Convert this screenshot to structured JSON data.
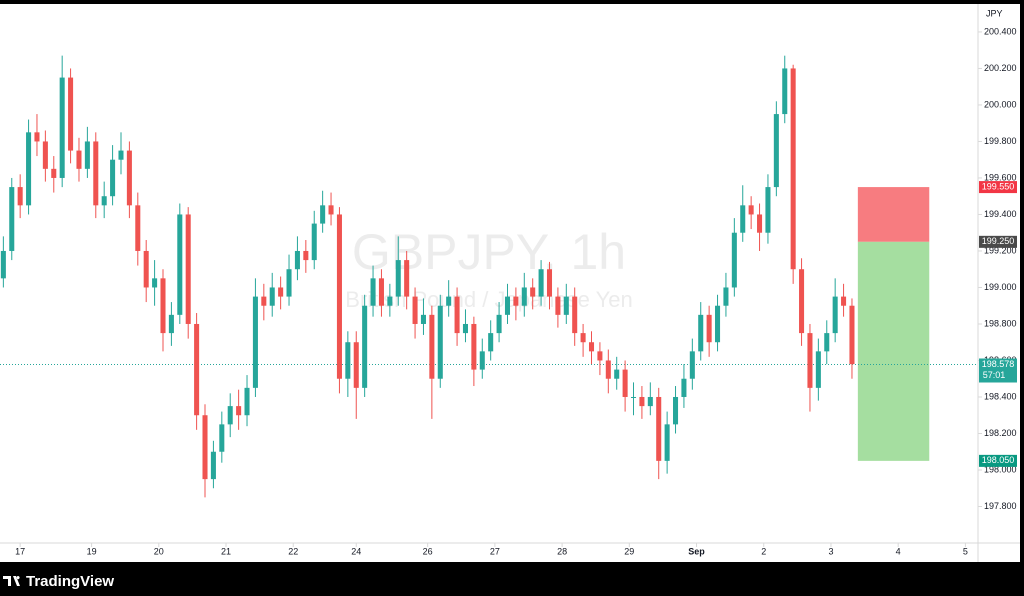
{
  "chart_data": {
    "type": "candlestick",
    "title": "GBPJPY, 1h",
    "subtitle": "British Pound / Japanese Yen",
    "currency": "JPY",
    "brand": "TradingView",
    "up_color": "#26a69a",
    "down_color": "#ef5350",
    "candles": [
      [
        199.05,
        199.28,
        199.0,
        199.2
      ],
      [
        199.2,
        199.6,
        199.15,
        199.55
      ],
      [
        199.55,
        199.62,
        199.38,
        199.45
      ],
      [
        199.45,
        199.92,
        199.4,
        199.85
      ],
      [
        199.85,
        199.95,
        199.72,
        199.8
      ],
      [
        199.8,
        199.86,
        199.58,
        199.65
      ],
      [
        199.65,
        199.72,
        199.52,
        199.6
      ],
      [
        199.6,
        200.27,
        199.55,
        200.15
      ],
      [
        200.15,
        200.2,
        199.68,
        199.75
      ],
      [
        199.75,
        199.82,
        199.58,
        199.65
      ],
      [
        199.65,
        199.88,
        199.6,
        199.8
      ],
      [
        199.8,
        199.85,
        199.38,
        199.45
      ],
      [
        199.45,
        199.58,
        199.38,
        199.5
      ],
      [
        199.5,
        199.78,
        199.45,
        199.7
      ],
      [
        199.7,
        199.85,
        199.62,
        199.75
      ],
      [
        199.75,
        199.8,
        199.38,
        199.45
      ],
      [
        199.45,
        199.52,
        199.12,
        199.2
      ],
      [
        199.2,
        199.26,
        198.92,
        199.0
      ],
      [
        199.0,
        199.15,
        198.9,
        199.05
      ],
      [
        199.05,
        199.1,
        198.65,
        198.75
      ],
      [
        198.75,
        198.92,
        198.68,
        198.85
      ],
      [
        198.85,
        199.46,
        198.8,
        199.4
      ],
      [
        199.4,
        199.44,
        198.72,
        198.8
      ],
      [
        198.8,
        198.86,
        198.22,
        198.3
      ],
      [
        198.3,
        198.36,
        197.85,
        197.95
      ],
      [
        197.95,
        198.16,
        197.9,
        198.1
      ],
      [
        198.1,
        198.32,
        198.04,
        198.25
      ],
      [
        198.25,
        198.42,
        198.18,
        198.35
      ],
      [
        198.35,
        198.44,
        198.22,
        198.3
      ],
      [
        198.3,
        198.52,
        198.24,
        198.45
      ],
      [
        198.45,
        199.05,
        198.4,
        198.95
      ],
      [
        198.95,
        199.02,
        198.82,
        198.9
      ],
      [
        198.9,
        199.08,
        198.84,
        199.0
      ],
      [
        199.0,
        199.06,
        198.88,
        198.95
      ],
      [
        198.95,
        199.18,
        198.9,
        199.1
      ],
      [
        199.1,
        199.28,
        199.04,
        199.2
      ],
      [
        199.2,
        199.26,
        199.08,
        199.15
      ],
      [
        199.15,
        199.42,
        199.1,
        199.35
      ],
      [
        199.35,
        199.53,
        199.3,
        199.45
      ],
      [
        199.45,
        199.52,
        199.34,
        199.4
      ],
      [
        199.4,
        199.44,
        198.42,
        198.5
      ],
      [
        198.5,
        198.76,
        198.4,
        198.7
      ],
      [
        198.7,
        198.76,
        198.28,
        198.45
      ],
      [
        198.45,
        198.96,
        198.4,
        198.9
      ],
      [
        198.9,
        199.12,
        198.84,
        199.05
      ],
      [
        199.05,
        199.1,
        198.84,
        198.9
      ],
      [
        198.9,
        199.02,
        198.84,
        198.95
      ],
      [
        198.95,
        199.28,
        198.9,
        199.15
      ],
      [
        199.15,
        199.2,
        198.88,
        198.95
      ],
      [
        198.95,
        199.0,
        198.72,
        198.8
      ],
      [
        198.8,
        198.94,
        198.74,
        198.85
      ],
      [
        198.85,
        198.9,
        198.28,
        198.5
      ],
      [
        198.5,
        198.96,
        198.45,
        198.9
      ],
      [
        198.9,
        199.04,
        198.84,
        198.95
      ],
      [
        198.95,
        199.0,
        198.68,
        198.75
      ],
      [
        198.75,
        198.88,
        198.7,
        198.8
      ],
      [
        198.8,
        198.84,
        198.46,
        198.55
      ],
      [
        198.55,
        198.72,
        198.5,
        198.65
      ],
      [
        198.65,
        198.82,
        198.6,
        198.75
      ],
      [
        198.75,
        198.92,
        198.7,
        198.85
      ],
      [
        198.85,
        199.02,
        198.8,
        198.95
      ],
      [
        198.95,
        199.0,
        198.82,
        198.9
      ],
      [
        198.9,
        199.08,
        198.84,
        199.0
      ],
      [
        199.0,
        199.05,
        198.88,
        198.95
      ],
      [
        198.95,
        199.15,
        198.9,
        199.1
      ],
      [
        199.1,
        199.14,
        198.88,
        198.95
      ],
      [
        198.95,
        199.0,
        198.78,
        198.85
      ],
      [
        198.85,
        199.02,
        198.8,
        198.95
      ],
      [
        198.95,
        199.0,
        198.68,
        198.75
      ],
      [
        198.75,
        198.8,
        198.62,
        198.7
      ],
      [
        198.7,
        198.76,
        198.58,
        198.65
      ],
      [
        198.65,
        198.7,
        198.52,
        198.6
      ],
      [
        198.6,
        198.66,
        198.42,
        198.5
      ],
      [
        198.5,
        198.62,
        198.44,
        198.55
      ],
      [
        198.55,
        198.6,
        198.32,
        198.4
      ],
      [
        198.4,
        198.48,
        198.3,
        198.4
      ],
      [
        198.4,
        198.46,
        198.28,
        198.35
      ],
      [
        198.35,
        198.48,
        198.3,
        198.4
      ],
      [
        198.4,
        198.45,
        197.95,
        198.05
      ],
      [
        198.05,
        198.32,
        197.98,
        198.25
      ],
      [
        198.25,
        198.46,
        198.2,
        198.4
      ],
      [
        198.4,
        198.58,
        198.34,
        198.5
      ],
      [
        198.5,
        198.72,
        198.44,
        198.65
      ],
      [
        198.65,
        198.92,
        198.6,
        198.85
      ],
      [
        198.85,
        198.9,
        198.62,
        198.7
      ],
      [
        198.7,
        198.96,
        198.65,
        198.9
      ],
      [
        198.9,
        199.08,
        198.84,
        199.0
      ],
      [
        199.0,
        199.38,
        198.95,
        199.3
      ],
      [
        199.3,
        199.56,
        199.25,
        199.45
      ],
      [
        199.45,
        199.5,
        199.32,
        199.4
      ],
      [
        199.4,
        199.46,
        199.2,
        199.3
      ],
      [
        199.3,
        199.62,
        199.24,
        199.55
      ],
      [
        199.55,
        200.02,
        199.5,
        199.95
      ],
      [
        199.95,
        200.27,
        199.9,
        200.2
      ],
      [
        200.2,
        200.22,
        199.02,
        199.1
      ],
      [
        199.1,
        199.16,
        198.68,
        198.75
      ],
      [
        198.75,
        198.8,
        198.32,
        198.45
      ],
      [
        198.45,
        198.72,
        198.38,
        198.65
      ],
      [
        198.65,
        198.82,
        198.58,
        198.75
      ],
      [
        198.75,
        199.05,
        198.7,
        198.95
      ],
      [
        198.95,
        199.02,
        198.84,
        198.9
      ],
      [
        198.9,
        198.94,
        198.5,
        198.58
      ]
    ],
    "xlim": [
      -0.4,
      116
    ],
    "xticks": [
      {
        "value": 2,
        "label": "17"
      },
      {
        "value": 10.5,
        "label": "19"
      },
      {
        "value": 18.5,
        "label": "20"
      },
      {
        "value": 26.5,
        "label": "21"
      },
      {
        "value": 34.5,
        "label": "22"
      },
      {
        "value": 42,
        "label": "24"
      },
      {
        "value": 50.5,
        "label": "26"
      },
      {
        "value": 58.5,
        "label": "27"
      },
      {
        "value": 66.5,
        "label": "28"
      },
      {
        "value": 74.5,
        "label": "29"
      },
      {
        "value": 82.5,
        "label": "Sep"
      },
      {
        "value": 90.5,
        "label": "2"
      },
      {
        "value": 98.5,
        "label": "3"
      },
      {
        "value": 106.5,
        "label": "4"
      },
      {
        "value": 114.5,
        "label": "5"
      }
    ],
    "ylim": [
      197.6,
      200.575
    ],
    "yticks": [
      {
        "value": 197.8,
        "label": "197.800"
      },
      {
        "value": 198.0,
        "label": "198.000"
      },
      {
        "value": 198.2,
        "label": "198.200"
      },
      {
        "value": 198.4,
        "label": "198.400"
      },
      {
        "value": 198.6,
        "label": "198.600"
      },
      {
        "value": 198.8,
        "label": "198.800"
      },
      {
        "value": 199.0,
        "label": "199.000"
      },
      {
        "value": 199.2,
        "label": "199.200"
      },
      {
        "value": 199.4,
        "label": "199.400"
      },
      {
        "value": 199.6,
        "label": "199.600"
      },
      {
        "value": 199.8,
        "label": "199.800"
      },
      {
        "value": 200.0,
        "label": "200.000"
      },
      {
        "value": 200.2,
        "label": "200.200"
      },
      {
        "value": 200.4,
        "label": "200.400"
      }
    ],
    "last_price": 198.578,
    "last_price_color": "#26a69a",
    "countdown": "57:01",
    "position": {
      "stop": {
        "value": 199.55,
        "label": "199.550"
      },
      "entry": {
        "value": 199.25,
        "label": "199.250"
      },
      "target": {
        "value": 198.05,
        "label": "198.050"
      },
      "x_start": 101.7,
      "x_end": 110.2,
      "stop_color": "#f77c80",
      "target_color": "#a5dea0",
      "stop_label_color": "#f23645",
      "entry_label_color": "#4a4a4a",
      "target_label_color": "#089981"
    }
  }
}
